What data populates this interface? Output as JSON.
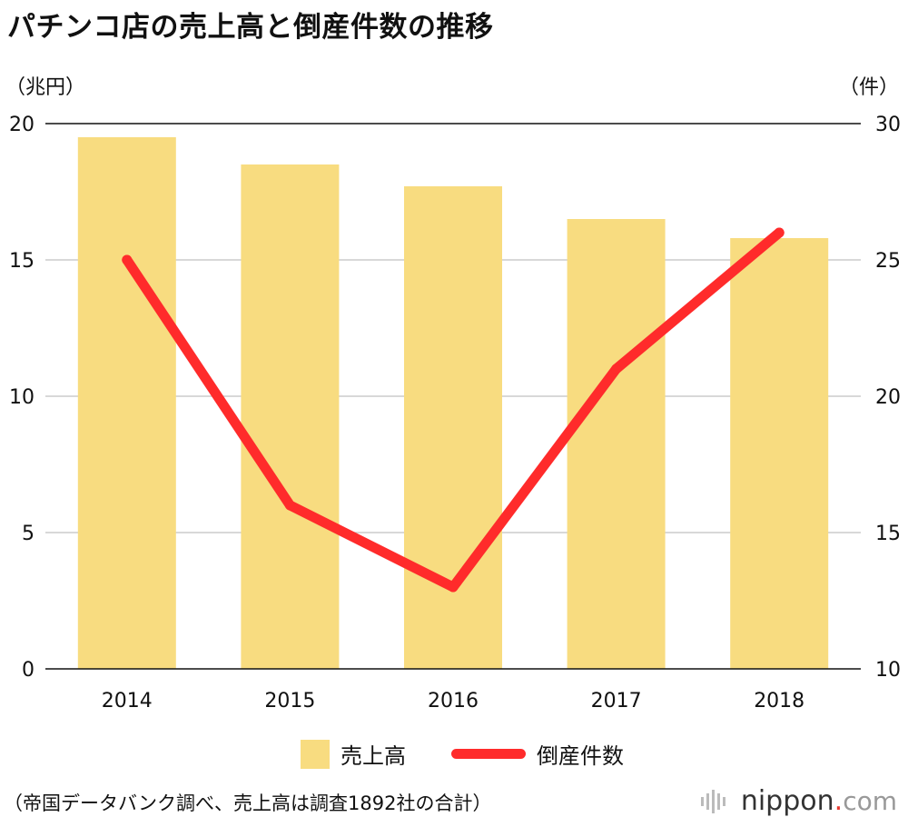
{
  "title": "パチンコ店の売上高と倒産件数の推移",
  "left_unit": "（兆円）",
  "right_unit": "（件）",
  "note": "（帝国データバンク調べ、売上高は調査1892社の合計）",
  "brand": {
    "name": "nippon",
    "dot": ".",
    "tld": "com"
  },
  "colors": {
    "bar": "#f8dc80",
    "line": "#ff2b2b",
    "grid": "#cccccc",
    "axis": "#111111"
  },
  "chart_data": {
    "type": "bar",
    "categories": [
      "2014",
      "2015",
      "2016",
      "2017",
      "2018"
    ],
    "series": [
      {
        "name": "売上高",
        "type": "bar",
        "axis": "left",
        "values": [
          19.5,
          18.5,
          17.7,
          16.5,
          15.8
        ]
      },
      {
        "name": "倒産件数",
        "type": "line",
        "axis": "right",
        "values": [
          25,
          16,
          13,
          21,
          26
        ]
      }
    ],
    "y_left": {
      "range": [
        0,
        20
      ],
      "ticks": [
        "0",
        "5",
        "10",
        "15",
        "20"
      ]
    },
    "y_right": {
      "range": [
        10,
        30
      ],
      "ticks": [
        "10",
        "15",
        "20",
        "25",
        "30"
      ]
    },
    "grid": true,
    "legend_placement": "bottom"
  }
}
